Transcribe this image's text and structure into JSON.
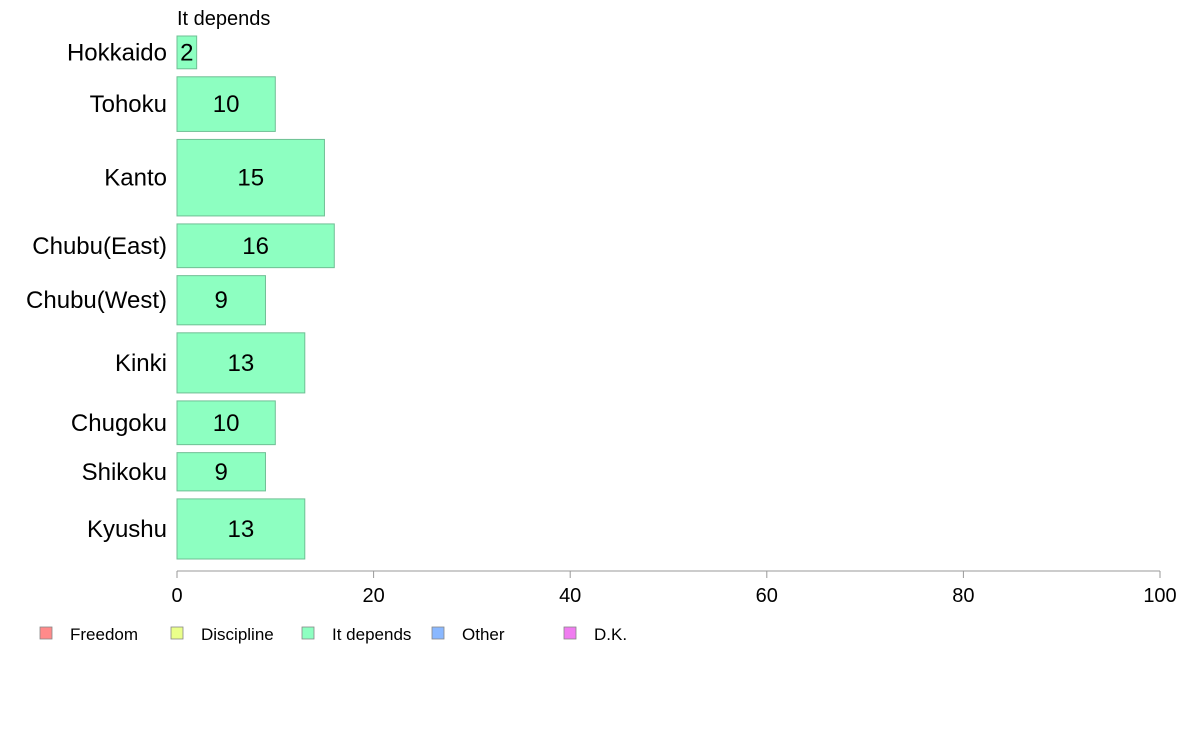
{
  "chart_data": {
    "type": "bar",
    "orientation": "horizontal",
    "title": "It depends",
    "categories": [
      "Hokkaido",
      "Tohoku",
      "Kanto",
      "Chubu(East)",
      "Chubu(West)",
      "Kinki",
      "Chugoku",
      "Shikoku",
      "Kyushu"
    ],
    "series": [
      {
        "name": "It depends",
        "values": [
          2,
          10,
          15,
          16,
          9,
          13,
          10,
          9,
          13
        ],
        "color": "#8dffc1"
      }
    ],
    "bar_weights": [
      0.6,
      1.0,
      1.4,
      0.8,
      0.9,
      1.1,
      0.8,
      0.7,
      1.1
    ],
    "xlim": [
      0,
      100
    ],
    "xticks": [
      "0",
      "20",
      "40",
      "60",
      "80",
      "100"
    ],
    "legend": {
      "placement": "bottom-left",
      "items": [
        {
          "label": "Freedom",
          "color": "#ff8a8a"
        },
        {
          "label": "Discipline",
          "color": "#eaff8a"
        },
        {
          "label": "It depends",
          "color": "#8dffc1"
        },
        {
          "label": "Other",
          "color": "#8ab8ff"
        },
        {
          "label": "D.K.",
          "color": "#f07cf0"
        }
      ]
    },
    "grid": false,
    "colors": {
      "bar_stroke": "#6fbf94",
      "axis": "#999999",
      "legend_stroke": "#888888"
    }
  }
}
